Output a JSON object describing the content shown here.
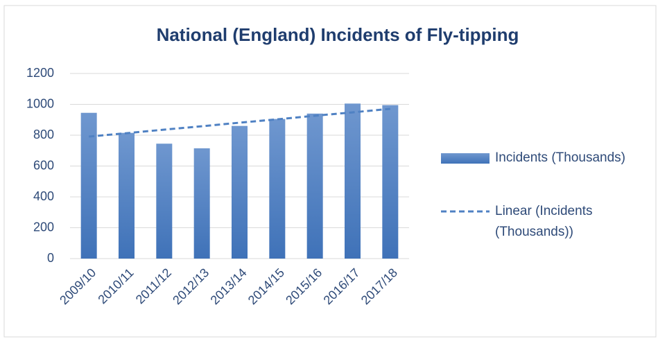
{
  "chart_data": {
    "type": "bar",
    "title": "National (England) Incidents of Fly-tipping",
    "categories": [
      "2009/10",
      "2010/11",
      "2011/12",
      "2012/13",
      "2013/14",
      "2014/15",
      "2015/16",
      "2016/17",
      "2017/18"
    ],
    "series": [
      {
        "name": "Incidents (Thousands)",
        "type": "bar",
        "color": "#4f81c3",
        "values": [
          945,
          815,
          745,
          715,
          860,
          905,
          940,
          1005,
          995
        ]
      },
      {
        "name": "Linear (Incidents (Thousands))",
        "type": "line",
        "dashed": true,
        "color": "#4f81c3",
        "values": [
          791,
          813,
          836,
          858,
          881,
          903,
          926,
          948,
          971
        ]
      }
    ],
    "ylim": [
      0,
      1200
    ],
    "yticks": [
      0,
      200,
      400,
      600,
      800,
      1000,
      1200
    ],
    "grid": true,
    "legend": "right"
  }
}
